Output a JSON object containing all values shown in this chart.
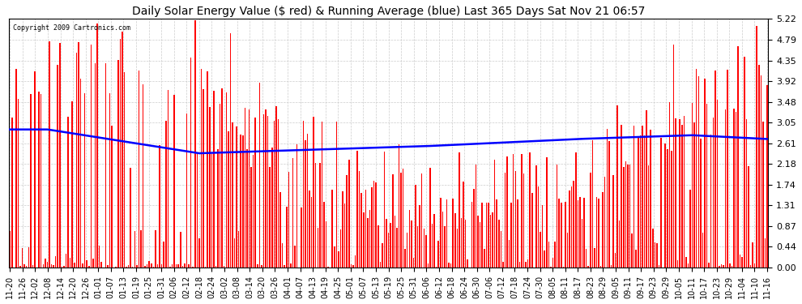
{
  "title": "Daily Solar Energy Value ($ red) & Running Average (blue) Last 365 Days Sat Nov 21 06:57",
  "copyright": "Copyright 2009 Cartronics.com",
  "bar_color": "#FF0000",
  "avg_color": "#0000FF",
  "bg_color": "#FFFFFF",
  "plot_bg_color": "#FFFFFF",
  "grid_color": "#CCCCCC",
  "yticks": [
    0.0,
    0.44,
    0.87,
    1.31,
    1.74,
    2.18,
    2.61,
    3.05,
    3.48,
    3.92,
    4.35,
    4.79,
    5.22
  ],
  "ylim": [
    0,
    5.22
  ],
  "x_labels": [
    "11-20",
    "11-26",
    "12-02",
    "12-08",
    "12-14",
    "12-20",
    "12-26",
    "01-01",
    "01-07",
    "01-13",
    "01-19",
    "01-25",
    "01-31",
    "02-06",
    "02-12",
    "02-18",
    "02-24",
    "03-02",
    "03-08",
    "03-14",
    "03-20",
    "03-26",
    "04-01",
    "04-07",
    "04-13",
    "04-19",
    "04-25",
    "05-01",
    "05-07",
    "05-13",
    "05-19",
    "05-25",
    "05-31",
    "06-06",
    "06-12",
    "06-18",
    "06-24",
    "06-30",
    "07-06",
    "07-12",
    "07-18",
    "07-24",
    "07-30",
    "08-05",
    "08-11",
    "08-17",
    "08-23",
    "08-29",
    "09-05",
    "09-11",
    "09-17",
    "09-23",
    "09-29",
    "10-05",
    "10-11",
    "10-17",
    "10-23",
    "10-29",
    "11-04",
    "11-10",
    "11-16"
  ],
  "n_days": 365,
  "seed": 42,
  "bar_width": 0.6
}
